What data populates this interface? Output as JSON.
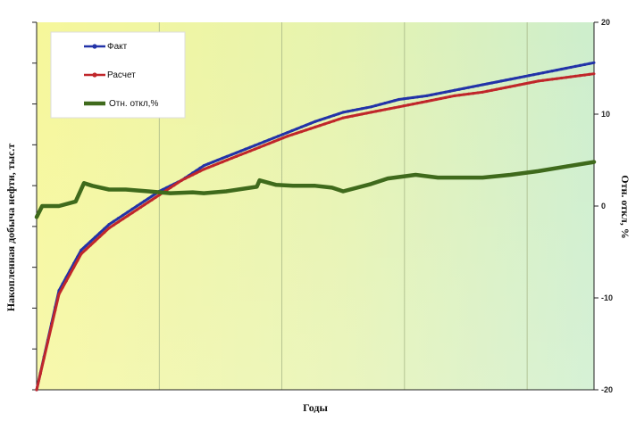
{
  "chart_data": {
    "type": "line",
    "xlabel": "Годы",
    "ylabel": "Накопленная добыча нефти, тыс.т",
    "y2label": "Отн. откл, %",
    "y2lim": [
      -20,
      20
    ],
    "y2ticks": [
      "20",
      "10",
      "0",
      "-10",
      "-20"
    ],
    "grid": true,
    "legend_position": "top-left",
    "colors": {
      "background_left": "#f6f79a",
      "background_right": "#cdeecd",
      "fact": "#2233a8",
      "calc": "#c0262a",
      "dev": "#3f6a1c"
    },
    "series": [
      {
        "name": "Факт",
        "axis": "left",
        "color": "#2233a8",
        "x": [
          0,
          0.04,
          0.08,
          0.13,
          0.18,
          0.22,
          0.26,
          0.3,
          0.35,
          0.4,
          0.45,
          0.5,
          0.55,
          0.6,
          0.65,
          0.7,
          0.75,
          0.8,
          0.85,
          0.9,
          0.95,
          1.0
        ],
        "y": [
          0.0,
          0.27,
          0.38,
          0.45,
          0.5,
          0.54,
          0.57,
          0.61,
          0.64,
          0.67,
          0.7,
          0.73,
          0.755,
          0.77,
          0.79,
          0.8,
          0.815,
          0.83,
          0.845,
          0.86,
          0.875,
          0.89
        ]
      },
      {
        "name": "Расчет",
        "axis": "left",
        "color": "#c0262a",
        "x": [
          0,
          0.04,
          0.08,
          0.13,
          0.18,
          0.22,
          0.26,
          0.3,
          0.35,
          0.4,
          0.45,
          0.5,
          0.55,
          0.6,
          0.65,
          0.7,
          0.75,
          0.8,
          0.85,
          0.9,
          0.95,
          1.0
        ],
        "y": [
          0.0,
          0.26,
          0.37,
          0.44,
          0.49,
          0.53,
          0.57,
          0.6,
          0.63,
          0.66,
          0.69,
          0.715,
          0.74,
          0.755,
          0.77,
          0.785,
          0.8,
          0.81,
          0.825,
          0.84,
          0.85,
          0.86
        ]
      },
      {
        "name": "Отн. откл,%",
        "axis": "right",
        "color": "#3f6a1c",
        "x": [
          0,
          0.01,
          0.04,
          0.07,
          0.085,
          0.1,
          0.13,
          0.16,
          0.2,
          0.24,
          0.28,
          0.3,
          0.34,
          0.395,
          0.4,
          0.43,
          0.46,
          0.5,
          0.53,
          0.55,
          0.6,
          0.63,
          0.68,
          0.72,
          0.76,
          0.8,
          0.85,
          0.9,
          0.95,
          1.0
        ],
        "y": [
          -1.2,
          0.0,
          0.0,
          0.5,
          2.5,
          2.2,
          1.8,
          1.8,
          1.6,
          1.4,
          1.5,
          1.4,
          1.6,
          2.1,
          2.8,
          2.3,
          2.2,
          2.2,
          2.0,
          1.6,
          2.4,
          3.0,
          3.4,
          3.1,
          3.1,
          3.1,
          3.4,
          3.8,
          4.3,
          4.8
        ]
      }
    ]
  }
}
